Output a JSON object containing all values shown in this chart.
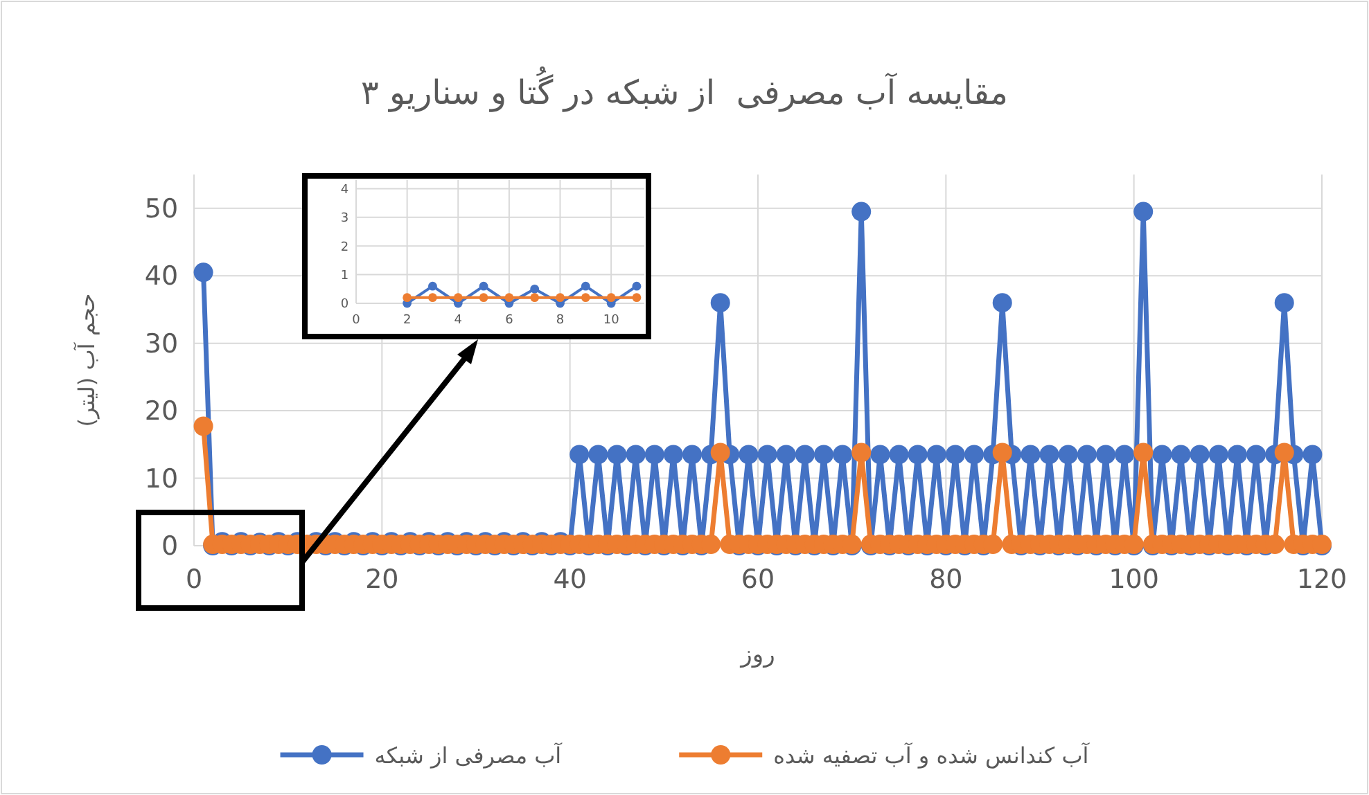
{
  "chart_data": [
    {
      "type": "line",
      "title": "مقایسه آب مصرفی  از شبکه در گُتا و سناریو ۳",
      "xlabel": "روز",
      "ylabel": "حجم آب (لیتر)",
      "x": [
        1,
        2,
        3,
        4,
        5,
        6,
        7,
        8,
        9,
        10,
        11,
        12,
        13,
        14,
        15,
        16,
        17,
        18,
        19,
        20,
        21,
        22,
        23,
        24,
        25,
        26,
        27,
        28,
        29,
        30,
        31,
        32,
        33,
        34,
        35,
        36,
        37,
        38,
        39,
        40,
        41,
        42,
        43,
        44,
        45,
        46,
        47,
        48,
        49,
        50,
        51,
        52,
        53,
        54,
        55,
        56,
        57,
        58,
        59,
        60,
        61,
        62,
        63,
        64,
        65,
        66,
        67,
        68,
        69,
        70,
        71,
        72,
        73,
        74,
        75,
        76,
        77,
        78,
        79,
        80,
        81,
        82,
        83,
        84,
        85,
        86,
        87,
        88,
        89,
        90,
        91,
        92,
        93,
        94,
        95,
        96,
        97,
        98,
        99,
        100,
        101,
        102,
        103,
        104,
        105,
        106,
        107,
        108,
        109,
        110,
        111,
        112,
        113,
        114,
        115,
        116,
        117,
        118,
        119,
        120
      ],
      "series": [
        {
          "name": "آب مصرفی از شبکه",
          "color": "#4472c4",
          "values": [
            40.5,
            0,
            0.6,
            0,
            0.6,
            0,
            0.5,
            0,
            0.6,
            0,
            0.6,
            0,
            0.6,
            0,
            0.6,
            0,
            0.6,
            0,
            0.6,
            0,
            0.6,
            0,
            0.6,
            0,
            0.6,
            0,
            0.6,
            0,
            0.6,
            0,
            0.6,
            0,
            0.6,
            0,
            0.6,
            0,
            0.6,
            0,
            0.6,
            0,
            13.5,
            0,
            13.5,
            0,
            13.5,
            0,
            13.5,
            0,
            13.5,
            0,
            13.5,
            0,
            13.5,
            0,
            13.5,
            36,
            13.5,
            0,
            13.5,
            0,
            13.5,
            0,
            13.5,
            0,
            13.5,
            0,
            13.5,
            0,
            13.5,
            0,
            49.5,
            0,
            13.5,
            0,
            13.5,
            0,
            13.5,
            0,
            13.5,
            0,
            13.5,
            0,
            13.5,
            0,
            13.5,
            36,
            13.5,
            0,
            13.5,
            0,
            13.5,
            0,
            13.5,
            0,
            13.5,
            0,
            13.5,
            0,
            13.5,
            0,
            49.5,
            0,
            13.5,
            0,
            13.5,
            0,
            13.5,
            0,
            13.5,
            0,
            13.5,
            0,
            13.5,
            0,
            13.5,
            36,
            13.5,
            0,
            13.5,
            0
          ]
        },
        {
          "name": "آب کندانس شده و آب تصفیه شده",
          "color": "#ed7d31",
          "values": [
            17.7,
            0.2,
            0.2,
            0.2,
            0.2,
            0.2,
            0.2,
            0.2,
            0.2,
            0.2,
            0.2,
            0.2,
            0.2,
            0.2,
            0.2,
            0.2,
            0.2,
            0.2,
            0.2,
            0.2,
            0.2,
            0.2,
            0.2,
            0.2,
            0.2,
            0.2,
            0.2,
            0.2,
            0.2,
            0.2,
            0.2,
            0.2,
            0.2,
            0.2,
            0.2,
            0.2,
            0.2,
            0.2,
            0.2,
            0.2,
            0.2,
            0.2,
            0.2,
            0.2,
            0.2,
            0.2,
            0.2,
            0.2,
            0.2,
            0.2,
            0.2,
            0.2,
            0.2,
            0.2,
            0.2,
            13.8,
            0.2,
            0.2,
            0.2,
            0.2,
            0.2,
            0.2,
            0.2,
            0.2,
            0.2,
            0.2,
            0.2,
            0.2,
            0.2,
            0.2,
            13.8,
            0.2,
            0.2,
            0.2,
            0.2,
            0.2,
            0.2,
            0.2,
            0.2,
            0.2,
            0.2,
            0.2,
            0.2,
            0.2,
            0.2,
            13.8,
            0.2,
            0.2,
            0.2,
            0.2,
            0.2,
            0.2,
            0.2,
            0.2,
            0.2,
            0.2,
            0.2,
            0.2,
            0.2,
            0.2,
            13.8,
            0.2,
            0.2,
            0.2,
            0.2,
            0.2,
            0.2,
            0.2,
            0.2,
            0.2,
            0.2,
            0.2,
            0.2,
            0.2,
            0.2,
            13.8,
            0.2,
            0.2,
            0.2,
            0.2
          ]
        }
      ],
      "xlim": [
        0,
        120
      ],
      "xticks": [
        0,
        20,
        40,
        60,
        80,
        100,
        120
      ],
      "ylim": [
        0,
        55
      ],
      "yticks": [
        0,
        10,
        20,
        30,
        40,
        50
      ],
      "grid": true,
      "legend": "bottom",
      "marker": "circle"
    },
    {
      "type": "line",
      "x": [
        2,
        3,
        4,
        5,
        6,
        7,
        8,
        9,
        10,
        11
      ],
      "series": [
        {
          "color": "#4472c4",
          "values": [
            0,
            0.6,
            0,
            0.6,
            0,
            0.5,
            0,
            0.6,
            0,
            0.6
          ]
        },
        {
          "color": "#ed7d31",
          "values": [
            0.2,
            0.2,
            0.2,
            0.2,
            0.2,
            0.2,
            0.2,
            0.2,
            0.2,
            0.2
          ]
        }
      ],
      "xlim": [
        0,
        11.3
      ],
      "xticks": [
        0,
        2,
        4,
        6,
        8,
        10
      ],
      "ylim": [
        0,
        4.3
      ],
      "yticks": [
        0,
        1,
        2,
        3,
        4
      ],
      "grid": true,
      "marker": "circle"
    }
  ]
}
